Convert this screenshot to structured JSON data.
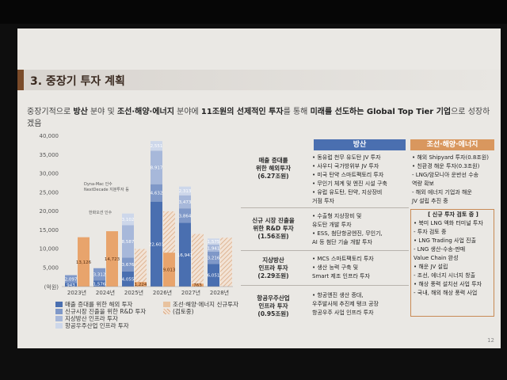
{
  "slide": {
    "title": "3. 중장기 투자 계획",
    "subtitle_parts": [
      "중장기적으로 ",
      "방산",
      " 분야 및 ",
      "조선·해양·에너지",
      " 분야에 ",
      "11조원의 선제적인 투자",
      "를 통해 ",
      "미래를 선도하는 Global Top Tier 기업",
      "으로 성장하겠음"
    ],
    "page_number": "12"
  },
  "chart_data": {
    "type": "bar",
    "categories": [
      "2023년",
      "2024년",
      "2025년",
      "2026년",
      "2027년",
      "2028년"
    ],
    "ylim": [
      0,
      40000
    ],
    "yticks": [
      "40,000",
      "35,000",
      "30,000",
      "25,000",
      "20,000",
      "15,000",
      "10,000",
      "5,000"
    ],
    "yunit": "(억원)",
    "series": [
      {
        "name": "매출 증대를 위한 해외 투자",
        "color": "#4a6fb0",
        "values": [
          943,
          1576,
          4055,
          22601,
          16941,
          6051
        ]
      },
      {
        "name": "신규시장 진출을 위한 R&D 투자",
        "color": "#7f98c8",
        "values": [
          2097,
          3312,
          3676,
          4632,
          3864,
          3216
        ]
      },
      {
        "name": "지상방산 인프라 투자",
        "color": "#a7b8da",
        "values": [
          0,
          0,
          8587,
          8917,
          3473,
          1941
        ]
      },
      {
        "name": "항공우주산업 인프라 투자",
        "color": "#cdd7ea",
        "values": [
          0,
          0,
          3102,
          2551,
          2313,
          1575
        ]
      }
    ],
    "orange_bars": [
      {
        "year": "2023년",
        "value": 13126,
        "label": "13,126"
      },
      {
        "year": "2024년",
        "value": 14723,
        "label": "14,723"
      },
      {
        "year": "2025년",
        "value": 1224,
        "label": "1,224"
      },
      {
        "year": "2026년",
        "value": 9013,
        "label": "9,013"
      },
      {
        "year": "2027년",
        "value": 763,
        "label": "763"
      },
      {
        "year": "2028년",
        "value": 0,
        "label": ""
      }
    ],
    "hatched_bars": [
      {
        "year": "2025년",
        "value": 10000
      },
      {
        "year": "2026년",
        "value": 20000
      },
      {
        "year": "2027년",
        "value": 14000
      },
      {
        "year": "2028년",
        "value": 13000
      }
    ],
    "annotations": [
      "Dyna-Mac 인수",
      "NextDecade 지분투자 등",
      "한화오션 인수"
    ],
    "legend_left": [
      "매출 증대를 위한 해외 투자",
      "신규시장 진출을 위한 R&D 투자",
      "지상방산 인프라 투자",
      "항공우주산업 인프라 투자"
    ],
    "legend_right": [
      "조선·해양·에너지 신규투자",
      "(검토중)"
    ]
  },
  "table": {
    "header_defense": "방산",
    "header_ship": "조선·해양·에너지",
    "rows": [
      {
        "label": [
          "매출 증대를",
          "위한 해외투자",
          "(6.27조원)"
        ],
        "items": [
          "• 동유럽 천무 유도탄 JV 투자",
          "• 사우디 국가방위부 JV 투자",
          "• 미국 탄약 스마트팩토리 투자",
          "• 무인기 체계 및 엔진 시설 구축",
          "• 유럽 유도탄, 탄약, 지상장비",
          "   거점 투자"
        ]
      },
      {
        "label": [
          "신규 시장 진출을",
          "위한 R&D 투자",
          "(1.56조원)"
        ],
        "items": [
          "• 수출형 지상장비 및",
          "   유도탄 개발 투자",
          "• ESS, 첨단항공엔진, 무인기,",
          "   AI 등 첨단 기술 개발 투자"
        ]
      },
      {
        "label": [
          "지상방산",
          "인프라 투자",
          "(2.29조원)"
        ],
        "items": [
          "• MCS 스마트팩토리 투자",
          "• 생산 능력 구축 및",
          "   Smart 제조 인프라 투자"
        ]
      },
      {
        "label": [
          "항공우주산업",
          "인프라 투자",
          "(0.95조원)"
        ],
        "items": [
          "• 항공엔진 생산 증대,",
          "   우주발사체 추진제 탱크 공장",
          "   항공우주 사업 인프라 투자"
        ]
      }
    ],
    "ship_items": [
      "• 해외 Shipyard 투자(0.8조원)",
      "• 친환경 해운 투자(0.3조원)",
      "  - LNG/암모니아 운반선 수송",
      "    역량 확보",
      "  - 해외 에너지 기업과 해운",
      "    JV 설립 추진 중"
    ],
    "ship_review_title": "[ 신규 투자 검토 중 ]",
    "ship_review_items": [
      "• 북미 LNG 액화 터미널 투자",
      "  - 투자 검토 중",
      "• LNG Trading 사업 진출",
      "  - LNG 생산-수송-판매",
      "    Value Chain 완성",
      "• 해운 JV 설립",
      "  - 조선, 에너지 시너지 창출",
      "• 해상 풍력 설치선 사업 투자",
      "  - 국내, 해외 해상 풍력 사업"
    ]
  },
  "colors": {
    "accent": "#7a4b2a",
    "header_blue": "#4a6fb0",
    "header_orange": "#d9975e"
  }
}
